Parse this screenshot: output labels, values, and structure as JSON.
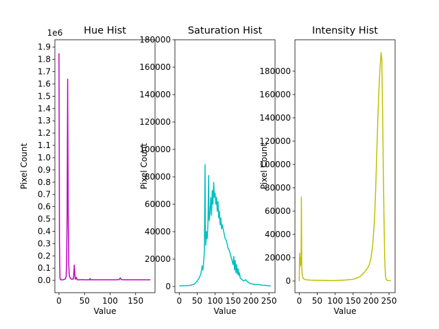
{
  "chart_data": [
    {
      "type": "line",
      "title": "Hue Hist",
      "xlabel": "Value",
      "ylabel": "Pixel Count",
      "color": "#bf00bf",
      "xlim": [
        -8,
        188
      ],
      "ylim": [
        -0.1,
        1.96
      ],
      "offset_text": "1e6",
      "xticks": [
        0,
        50,
        100,
        150
      ],
      "xtick_labels": [
        "0",
        "50",
        "100",
        "150"
      ],
      "yticks": [
        0.0,
        0.1,
        0.2,
        0.3,
        0.4,
        0.5,
        0.6,
        0.7,
        0.8,
        0.9,
        1.0,
        1.1,
        1.2,
        1.3,
        1.4,
        1.5,
        1.6,
        1.7,
        1.8,
        1.9
      ],
      "ytick_labels": [
        "0.0",
        "0.1",
        "0.2",
        "0.3",
        "0.4",
        "0.5",
        "0.6",
        "0.7",
        "0.8",
        "0.9",
        "1.0",
        "1.1",
        "1.2",
        "1.3",
        "1.4",
        "1.5",
        "1.6",
        "1.7",
        "1.8",
        "1.9"
      ],
      "series": [
        {
          "name": "hue",
          "x": [
            0,
            1,
            2,
            3,
            4,
            5,
            6,
            8,
            10,
            12,
            14,
            15,
            16,
            17,
            18,
            19,
            20,
            21,
            22,
            24,
            26,
            28,
            29,
            30,
            31,
            32,
            33,
            34,
            35,
            36,
            40,
            45,
            50,
            55,
            60,
            61,
            62,
            70,
            80,
            90,
            100,
            110,
            118,
            119,
            120,
            121,
            122,
            130,
            140,
            150,
            160,
            170,
            179
          ],
          "y": [
            1.85,
            0.3,
            0.02,
            0.005,
            0.005,
            0.005,
            0.005,
            0.005,
            0.008,
            0.01,
            0.03,
            0.15,
            0.55,
            1.64,
            0.6,
            0.15,
            0.05,
            0.03,
            0.02,
            0.01,
            0.01,
            0.01,
            0.05,
            0.125,
            0.05,
            0.01,
            0.02,
            0.025,
            0.01,
            0.005,
            0.005,
            0.006,
            0.005,
            0.005,
            0.005,
            0.015,
            0.005,
            0.005,
            0.005,
            0.005,
            0.005,
            0.005,
            0.006,
            0.015,
            0.02,
            0.015,
            0.006,
            0.005,
            0.005,
            0.005,
            0.005,
            0.005,
            0.005
          ]
        }
      ]
    },
    {
      "type": "line",
      "title": "Saturation Hist",
      "xlabel": "Value",
      "ylabel": "Pixel Count",
      "color": "#00bfbf",
      "xlim": [
        -12,
        267
      ],
      "ylim": [
        -4500,
        180000
      ],
      "xticks": [
        0,
        50,
        100,
        150,
        200,
        250
      ],
      "xtick_labels": [
        "0",
        "50",
        "100",
        "150",
        "200",
        "250"
      ],
      "yticks": [
        0,
        20000,
        40000,
        60000,
        80000,
        100000,
        120000,
        140000,
        160000,
        180000
      ],
      "ytick_labels": [
        "0",
        "20000",
        "40000",
        "60000",
        "80000",
        "100000",
        "120000",
        "140000",
        "160000",
        "180000"
      ],
      "series": [
        {
          "name": "saturation",
          "x": [
            0,
            10,
            20,
            30,
            40,
            45,
            50,
            55,
            60,
            62,
            64,
            66,
            68,
            70,
            72,
            73,
            74,
            76,
            78,
            80,
            82,
            83,
            84,
            86,
            88,
            90,
            92,
            94,
            96,
            98,
            100,
            102,
            104,
            106,
            108,
            110,
            112,
            114,
            116,
            118,
            120,
            124,
            128,
            132,
            136,
            140,
            144,
            148,
            150,
            152,
            154,
            156,
            158,
            160,
            162,
            164,
            166,
            168,
            170,
            175,
            180,
            185,
            190,
            195,
            200,
            210,
            220,
            230,
            240,
            250,
            255
          ],
          "y": [
            500,
            500,
            600,
            800,
            1500,
            2500,
            4000,
            6000,
            9000,
            12000,
            15000,
            12000,
            18000,
            25000,
            89000,
            40000,
            30000,
            40000,
            35000,
            45000,
            81000,
            50000,
            48000,
            55000,
            65000,
            52000,
            70000,
            60000,
            76000,
            65000,
            68000,
            60000,
            65000,
            55000,
            62000,
            50000,
            55000,
            45000,
            50000,
            42000,
            45000,
            40000,
            35000,
            33000,
            28000,
            26000,
            22000,
            18000,
            16000,
            22000,
            12000,
            19000,
            10000,
            16000,
            9000,
            13000,
            8000,
            10000,
            6000,
            5000,
            4000,
            5000,
            3500,
            2500,
            2000,
            1500,
            1500,
            1000,
            800,
            500,
            400
          ]
        }
      ]
    },
    {
      "type": "line",
      "title": "Intensity Hist",
      "xlabel": "Value",
      "ylabel": "Pixel Count",
      "color": "#bfbf00",
      "xlim": [
        -12,
        267
      ],
      "ylim": [
        -10000,
        207000
      ],
      "xticks": [
        0,
        50,
        100,
        150,
        200,
        250
      ],
      "xtick_labels": [
        "0",
        "50",
        "100",
        "150",
        "200",
        "250"
      ],
      "yticks": [
        0,
        20000,
        40000,
        60000,
        80000,
        100000,
        120000,
        140000,
        160000,
        180000
      ],
      "ytick_labels": [
        "0",
        "20000",
        "40000",
        "60000",
        "80000",
        "100000",
        "120000",
        "140000",
        "160000",
        "180000"
      ],
      "series": [
        {
          "name": "intensity",
          "x": [
            0,
            1,
            2,
            3,
            4,
            5,
            6,
            7,
            8,
            10,
            12,
            15,
            20,
            30,
            50,
            70,
            90,
            110,
            130,
            150,
            160,
            170,
            180,
            190,
            195,
            200,
            205,
            210,
            213,
            216,
            219,
            222,
            225,
            228,
            230,
            232,
            234,
            236,
            238,
            240,
            242,
            245,
            250,
            255
          ],
          "y": [
            0,
            24000,
            12000,
            20000,
            16000,
            14000,
            72000,
            10000,
            6000,
            3000,
            2000,
            1500,
            1000,
            800,
            600,
            500,
            400,
            600,
            900,
            1500,
            2500,
            4000,
            7000,
            11000,
            14000,
            20000,
            32000,
            55000,
            80000,
            110000,
            140000,
            165000,
            183000,
            196000,
            190000,
            150000,
            100000,
            55000,
            20000,
            5000,
            1500,
            500,
            300,
            200
          ]
        }
      ]
    }
  ]
}
